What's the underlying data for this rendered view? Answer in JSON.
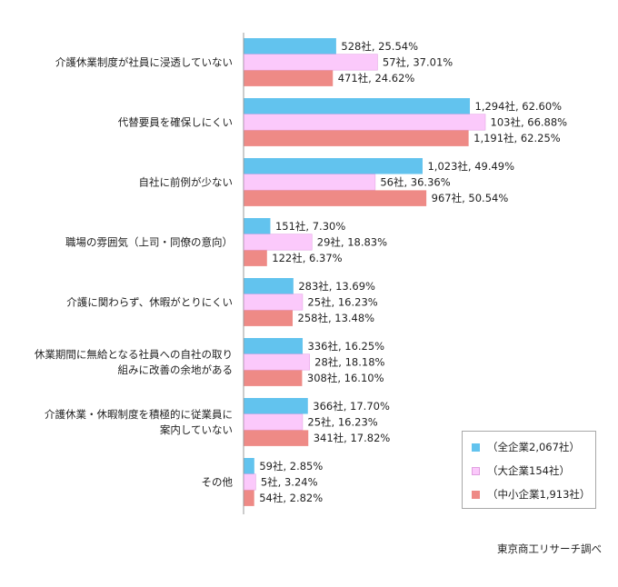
{
  "chart_data": {
    "type": "bar",
    "orientation": "horizontal",
    "categories": [
      [
        "介護休業制度が社員に浸透していない"
      ],
      [
        "代替要員を確保しにくい"
      ],
      [
        "自社に前例が少ない"
      ],
      [
        "職場の雰囲気（上司・同僚の意向）"
      ],
      [
        "介護に関わらず、休暇がとりにくい"
      ],
      [
        "休業期間に無給となる社員への自社の取り",
        "組みに改善の余地がある"
      ],
      [
        "介護休業・休暇制度を積極的に従業員に",
        "案内していない"
      ],
      [
        "その他"
      ]
    ],
    "series": [
      {
        "name": "（全企業2,067社）",
        "color": "#62c3ee",
        "values": [
          25.54,
          62.6,
          49.49,
          7.3,
          13.69,
          16.25,
          17.7,
          2.85
        ],
        "labels": [
          "528社, 25.54%",
          "1,294社, 62.60%",
          "1,023社, 49.49%",
          "151社, 7.30%",
          "283社, 13.69%",
          "336社, 16.25%",
          "366社, 17.70%",
          "59社, 2.85%"
        ]
      },
      {
        "name": "（大企業154社）",
        "color": "#fbc9fb",
        "values": [
          37.01,
          66.88,
          36.36,
          18.83,
          16.23,
          18.18,
          16.23,
          3.24
        ],
        "labels": [
          "57社, 37.01%",
          "103社, 66.88%",
          "56社, 36.36%",
          "29社, 18.83%",
          "25社, 16.23%",
          "28社, 18.18%",
          "25社, 16.23%",
          "5社, 3.24%"
        ]
      },
      {
        "name": "（中小企業1,913社）",
        "color": "#ee8a86",
        "values": [
          24.62,
          62.25,
          50.54,
          6.37,
          13.48,
          16.1,
          17.82,
          2.82
        ],
        "labels": [
          "471社, 24.62%",
          "1,191社, 62.25%",
          "967社, 50.54%",
          "122社, 6.37%",
          "258社, 13.48%",
          "308社, 16.10%",
          "341社, 17.82%",
          "54社, 2.82%"
        ]
      }
    ],
    "xlim": [
      0,
      100
    ],
    "grid": false,
    "legend_position": "bottom-right"
  },
  "source_note": "東京商工リサーチ調べ"
}
